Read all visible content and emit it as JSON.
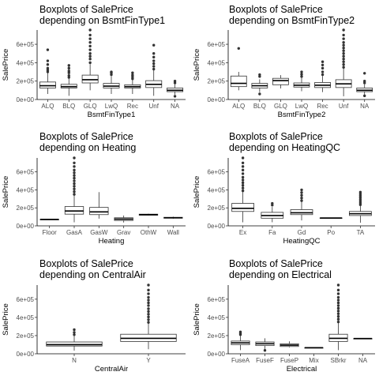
{
  "chart_data": [
    {
      "type": "boxplot",
      "title_line1": "Boxplots of SalePrice",
      "title_line2": " depending on BsmtFinType1",
      "xlabel": "BsmtFinType1",
      "ylabel": "SalePrice",
      "ylim": [
        0,
        755000
      ],
      "yticks": [
        0,
        200000,
        400000,
        600000
      ],
      "ytick_labels": [
        "0e+00",
        "2e+05",
        "4e+05",
        "6e+05"
      ],
      "categories": [
        "ALQ",
        "BLQ",
        "GLQ",
        "LwQ",
        "Rec",
        "Unf",
        "NA"
      ],
      "boxes": [
        {
          "min": 60000,
          "q1": 125000,
          "median": 150000,
          "q3": 190000,
          "max": 290000,
          "outliers": [
            300000,
            320000,
            340000,
            380000,
            420000,
            540000
          ]
        },
        {
          "min": 40000,
          "q1": 125000,
          "median": 140000,
          "q3": 165000,
          "max": 230000,
          "outliers": [
            240000,
            260000,
            290000,
            310000,
            340000,
            370000
          ]
        },
        {
          "min": 100000,
          "q1": 180000,
          "median": 215000,
          "q3": 265000,
          "max": 385000,
          "outliers": [
            400000,
            440000,
            470000,
            500000,
            540000,
            580000,
            620000,
            660000,
            700000,
            755000
          ]
        },
        {
          "min": 60000,
          "q1": 125000,
          "median": 145000,
          "q3": 175000,
          "max": 255000,
          "outliers": [
            270000,
            290000,
            300000
          ]
        },
        {
          "min": 60000,
          "q1": 125000,
          "median": 140000,
          "q3": 160000,
          "max": 215000,
          "outliers": [
            225000,
            245000,
            265000,
            290000
          ]
        },
        {
          "min": 40000,
          "q1": 130000,
          "median": 165000,
          "q3": 205000,
          "max": 320000,
          "outliers": [
            330000,
            360000,
            390000,
            420000,
            460000,
            500000,
            590000
          ]
        },
        {
          "min": 50000,
          "q1": 85000,
          "median": 100000,
          "q3": 125000,
          "max": 165000,
          "outliers": [
            35000,
            180000,
            200000
          ]
        }
      ]
    },
    {
      "type": "boxplot",
      "title_line1": "Boxplots of SalePrice",
      "title_line2": " depending on BsmtFinType2",
      "xlabel": "BsmtFinType2",
      "ylabel": "SalePrice",
      "ylim": [
        0,
        755000
      ],
      "yticks": [
        0,
        200000,
        400000,
        600000
      ],
      "ytick_labels": [
        "0e+00",
        "2e+05",
        "4e+05",
        "6e+05"
      ],
      "categories": [
        "ALQ",
        "BLQ",
        "GLQ",
        "LwQ",
        "Rec",
        "Unf",
        "NA"
      ],
      "boxes": [
        {
          "min": 100000,
          "q1": 140000,
          "median": 175000,
          "q3": 255000,
          "max": 300000,
          "outliers": [
            555000
          ]
        },
        {
          "min": 80000,
          "q1": 125000,
          "median": 150000,
          "q3": 175000,
          "max": 220000,
          "outliers": [
            60000,
            250000,
            270000
          ]
        },
        {
          "min": 120000,
          "q1": 160000,
          "median": 205000,
          "q3": 230000,
          "max": 265000,
          "outliers": []
        },
        {
          "min": 90000,
          "q1": 135000,
          "median": 155000,
          "q3": 180000,
          "max": 240000,
          "outliers": [
            250000,
            275000,
            300000
          ]
        },
        {
          "min": 80000,
          "q1": 130000,
          "median": 155000,
          "q3": 185000,
          "max": 255000,
          "outliers": [
            270000,
            300000,
            340000,
            375000,
            410000
          ]
        },
        {
          "min": 35000,
          "q1": 130000,
          "median": 170000,
          "q3": 215000,
          "max": 340000,
          "outliers": [
            350000,
            380000,
            410000,
            440000,
            470000,
            500000,
            530000,
            560000,
            590000,
            620000,
            660000,
            700000,
            755000
          ]
        },
        {
          "min": 50000,
          "q1": 85000,
          "median": 100000,
          "q3": 125000,
          "max": 165000,
          "outliers": [
            40000,
            180000,
            200000,
            285000
          ]
        }
      ]
    },
    {
      "type": "boxplot",
      "title_line1": "Boxplots of SalePrice",
      "title_line2": " depending on Heating",
      "xlabel": "Heating",
      "ylabel": "SalePrice",
      "ylim": [
        0,
        755000
      ],
      "yticks": [
        0,
        200000,
        400000,
        600000
      ],
      "ytick_labels": [
        "0e+00",
        "2e+05",
        "4e+05",
        "6e+05"
      ],
      "categories": [
        "Floor",
        "GasA",
        "GasW",
        "Grav",
        "OthW",
        "Wall"
      ],
      "boxes": [
        {
          "min": 72000,
          "q1": 72000,
          "median": 72000,
          "q3": 72000,
          "max": 72000,
          "outliers": []
        },
        {
          "min": 40000,
          "q1": 130000,
          "median": 165000,
          "q3": 215000,
          "max": 340000,
          "outliers": [
            350000,
            380000,
            410000,
            440000,
            470000,
            500000,
            530000,
            560000,
            590000,
            620000,
            660000,
            700000,
            755000
          ]
        },
        {
          "min": 80000,
          "q1": 125000,
          "median": 155000,
          "q3": 205000,
          "max": 375000,
          "outliers": []
        },
        {
          "min": 37000,
          "q1": 60000,
          "median": 75000,
          "q3": 90000,
          "max": 115000,
          "outliers": []
        },
        {
          "min": 115000,
          "q1": 118000,
          "median": 125000,
          "q3": 130000,
          "max": 135000,
          "outliers": []
        },
        {
          "min": 80000,
          "q1": 85000,
          "median": 90000,
          "q3": 95000,
          "max": 102000,
          "outliers": []
        }
      ]
    },
    {
      "type": "boxplot",
      "title_line1": "Boxplots of SalePrice",
      "title_line2": " depending on HeatingQC",
      "xlabel": "HeatingQC",
      "ylabel": "SalePrice",
      "ylim": [
        0,
        755000
      ],
      "yticks": [
        0,
        200000,
        400000,
        600000
      ],
      "ytick_labels": [
        "0e+00",
        "2e+05",
        "4e+05",
        "6e+05"
      ],
      "categories": [
        "Ex",
        "Fa",
        "Gd",
        "Po",
        "TA"
      ],
      "boxes": [
        {
          "min": 40000,
          "q1": 160000,
          "median": 195000,
          "q3": 250000,
          "max": 380000,
          "outliers": [
            390000,
            420000,
            450000,
            480000,
            510000,
            540000,
            580000,
            620000,
            660000,
            700000,
            755000
          ]
        },
        {
          "min": 40000,
          "q1": 85000,
          "median": 115000,
          "q3": 150000,
          "max": 210000,
          "outliers": [
            230000,
            250000
          ]
        },
        {
          "min": 60000,
          "q1": 125000,
          "median": 145000,
          "q3": 180000,
          "max": 270000,
          "outliers": [
            280000,
            310000,
            340000,
            370000,
            400000
          ]
        },
        {
          "min": 85000,
          "q1": 85000,
          "median": 87000,
          "q3": 88000,
          "max": 88000,
          "outliers": []
        },
        {
          "min": 35000,
          "q1": 115000,
          "median": 135000,
          "q3": 160000,
          "max": 225000,
          "outliers": [
            235000,
            255000,
            275000,
            295000,
            315000,
            335000,
            355000,
            375000
          ]
        }
      ]
    },
    {
      "type": "boxplot",
      "title_line1": "Boxplots of SalePrice",
      "title_line2": " depending on CentralAir",
      "xlabel": "CentralAir",
      "ylabel": "SalePrice",
      "ylim": [
        0,
        755000
      ],
      "yticks": [
        0,
        200000,
        400000,
        600000
      ],
      "ytick_labels": [
        "0e+00",
        "2e+05",
        "4e+05",
        "6e+05"
      ],
      "categories": [
        "N",
        "Y"
      ],
      "boxes": [
        {
          "min": 35000,
          "q1": 85000,
          "median": 100000,
          "q3": 130000,
          "max": 195000,
          "outliers": [
            210000,
            235000,
            265000
          ]
        },
        {
          "min": 50000,
          "q1": 135000,
          "median": 170000,
          "q3": 215000,
          "max": 335000,
          "outliers": [
            345000,
            375000,
            405000,
            435000,
            465000,
            495000,
            530000,
            560000,
            590000,
            620000,
            660000,
            700000,
            755000
          ]
        }
      ]
    },
    {
      "type": "boxplot",
      "title_line1": "Boxplots of SalePrice",
      "title_line2": " depending on Electrical",
      "xlabel": "Electrical",
      "ylabel": "SalePrice",
      "ylim": [
        0,
        755000
      ],
      "yticks": [
        0,
        200000,
        400000,
        600000
      ],
      "ytick_labels": [
        "0e+00",
        "2e+05",
        "4e+05",
        "6e+05"
      ],
      "categories": [
        "FuseA",
        "FuseF",
        "FuseP",
        "Mix",
        "SBrkr",
        "NA"
      ],
      "boxes": [
        {
          "min": 40000,
          "q1": 100000,
          "median": 120000,
          "q3": 140000,
          "max": 195000,
          "outliers": [
            210000,
            225000,
            240000
          ]
        },
        {
          "min": 40000,
          "q1": 90000,
          "median": 110000,
          "q3": 130000,
          "max": 170000,
          "outliers": [
            37000
          ]
        },
        {
          "min": 70000,
          "q1": 80000,
          "median": 95000,
          "q3": 110000,
          "max": 137000,
          "outliers": []
        },
        {
          "min": 67000,
          "q1": 67000,
          "median": 67000,
          "q3": 67000,
          "max": 67000,
          "outliers": []
        },
        {
          "min": 40000,
          "q1": 135000,
          "median": 170000,
          "q3": 215000,
          "max": 340000,
          "outliers": [
            350000,
            380000,
            410000,
            440000,
            470000,
            500000,
            530000,
            560000,
            590000,
            620000,
            660000,
            700000,
            755000
          ]
        },
        {
          "min": 167500,
          "q1": 167500,
          "median": 167500,
          "q3": 167500,
          "max": 167500,
          "outliers": []
        }
      ]
    }
  ]
}
